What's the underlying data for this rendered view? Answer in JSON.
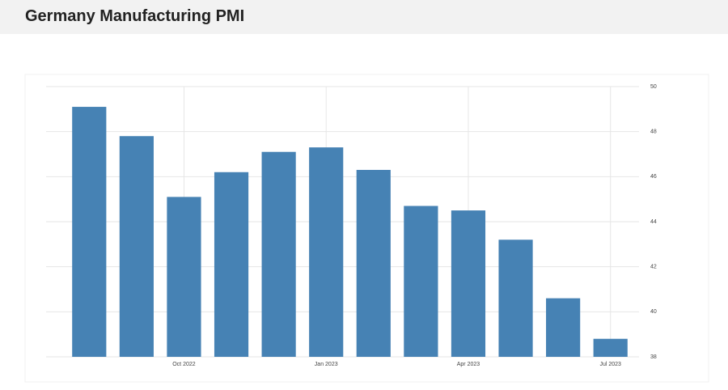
{
  "chart_data": {
    "type": "bar",
    "title": "Germany Manufacturing PMI",
    "categories": [
      null,
      null,
      "Oct 2022",
      null,
      null,
      "Jan 2023",
      null,
      null,
      "Apr 2023",
      null,
      null,
      "Jul 2023"
    ],
    "values": [
      49.1,
      47.8,
      45.1,
      46.2,
      47.1,
      47.3,
      46.3,
      44.7,
      44.5,
      43.2,
      40.6,
      38.8
    ],
    "color": "#4682b4",
    "ylim": [
      38,
      50
    ],
    "yticks": [
      38,
      40,
      42,
      44,
      46,
      48,
      50
    ],
    "grid": true
  }
}
